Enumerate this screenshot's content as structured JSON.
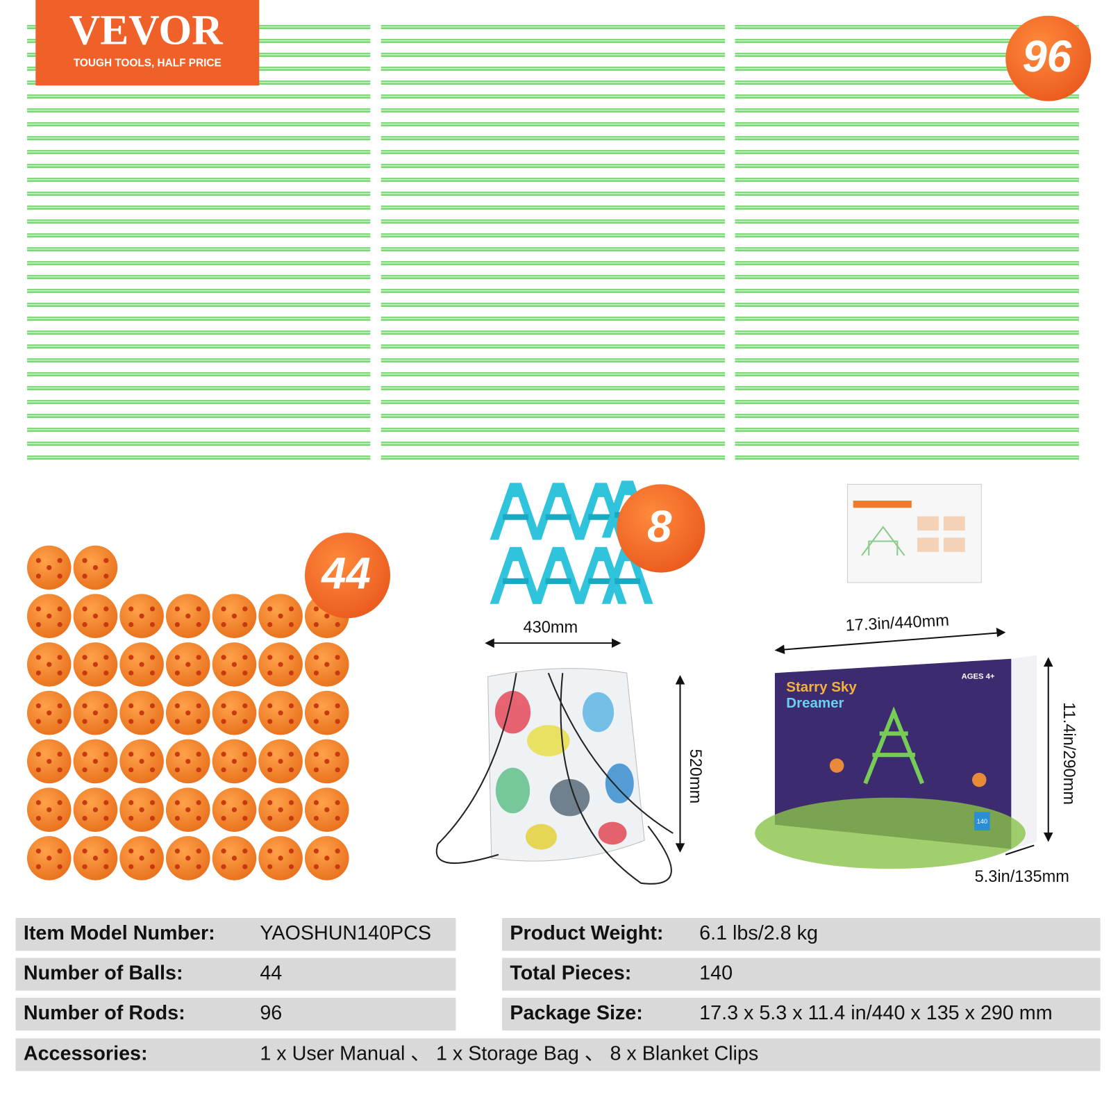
{
  "logo": {
    "brand": "VEVOR",
    "tagline": "TOUGH TOOLS, HALF PRICE"
  },
  "badges": {
    "rods": "96",
    "balls": "44",
    "clips": "8"
  },
  "dimensions": {
    "bag_width": "430mm",
    "bag_height": "520mm",
    "box_length": "17.3in/440mm",
    "box_height": "11.4in/290mm",
    "box_depth": "5.3in/135mm"
  },
  "package": {
    "title_lines": [
      "Starry Sky",
      "Dreamer"
    ],
    "age": "AGES 4+",
    "count": "140"
  },
  "specs": {
    "left": [
      [
        "Item Model Number:",
        "YAOSHUN140PCS"
      ],
      [
        "Number of Balls:",
        "44"
      ],
      [
        "Number of Rods:",
        "96"
      ]
    ],
    "right": [
      [
        "Product Weight:",
        "6.1 lbs/2.8 kg"
      ],
      [
        "Total Pieces:",
        "140"
      ],
      [
        "Package Size:",
        "17.3 x 5.3 x 11.4 in/440 x 135 x 290 mm"
      ]
    ],
    "accessories": [
      "Accessories:",
      "1 x User Manual 、 1 x Storage Bag 、 8 x Blanket Clips"
    ]
  }
}
